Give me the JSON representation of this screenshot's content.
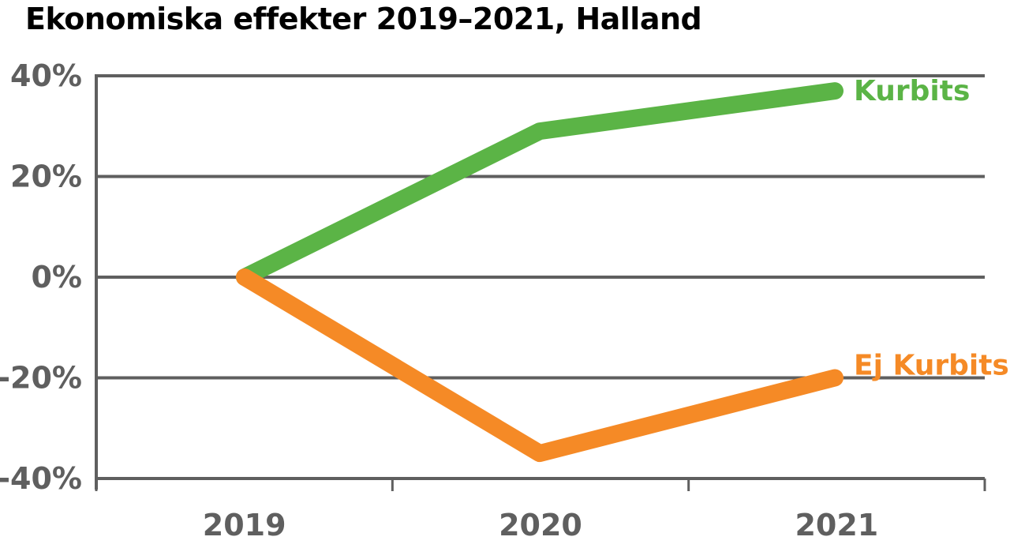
{
  "chart_data": {
    "type": "line",
    "title": "Ekonomiska effekter 2019–2021, Halland",
    "xlabel": "",
    "ylabel": "",
    "categories": [
      "2019",
      "2020",
      "2021"
    ],
    "series": [
      {
        "name": "Kurbits",
        "values": [
          0,
          29,
          37
        ],
        "color": "#5bb446"
      },
      {
        "name": "Ej Kurbits",
        "values": [
          0,
          -35,
          -20
        ],
        "color": "#f58a26"
      }
    ],
    "ylim": [
      -40,
      40
    ],
    "yticks": [
      40,
      20,
      0,
      -20,
      -40
    ],
    "ytick_labels": [
      "40%",
      "20%",
      "0%",
      "-20%",
      "-40%"
    ],
    "grid": true,
    "legend": "inline labels at line ends"
  }
}
